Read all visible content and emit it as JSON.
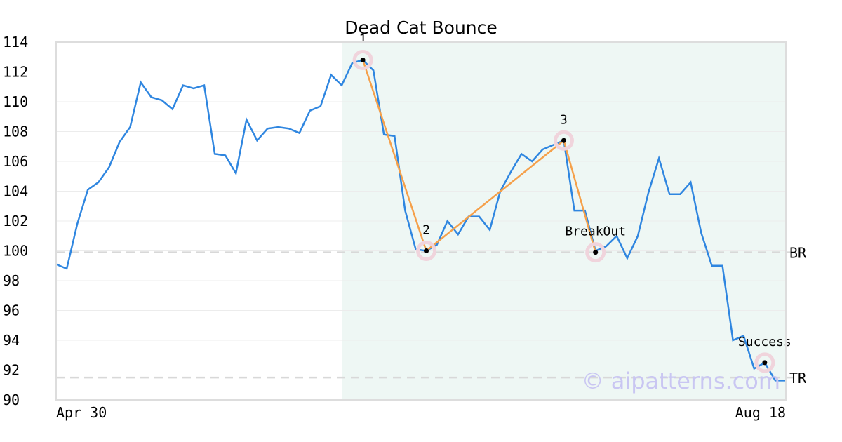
{
  "chart_data": {
    "type": "line",
    "title": "Dead Cat Bounce",
    "xlabel": "",
    "ylabel": "",
    "x_tick_labels": [
      "Apr 30",
      "Aug 18"
    ],
    "y_ticks": [
      90,
      92,
      94,
      96,
      98,
      100,
      102,
      104,
      106,
      108,
      110,
      112,
      114
    ],
    "ylim": [
      90,
      114
    ],
    "grid": true,
    "colors": {
      "price_line": "#2f86e0",
      "pattern_line": "#f5a04a",
      "pattern_zone": "#eef7f4",
      "marker_ring": "#f0d4dc",
      "level_line": "#d8d8d8"
    },
    "series": [
      {
        "values": [
          99.1,
          98.8,
          101.8,
          104.1,
          104.6,
          105.6,
          107.3,
          108.3,
          111.3,
          110.3,
          110.1,
          109.5,
          111.1,
          110.9,
          111.1,
          106.5,
          106.4,
          105.2,
          108.8,
          107.4,
          108.2,
          108.3,
          108.2,
          107.9,
          109.4,
          109.7,
          111.8,
          111.1,
          112.6,
          112.8,
          112.1,
          107.8,
          107.7,
          102.7,
          100.1,
          100.0,
          100.4,
          102.0,
          101.1,
          102.3,
          102.3,
          101.4,
          104.0,
          105.3,
          106.5,
          106.0,
          106.8,
          107.1,
          107.4,
          102.7,
          102.7,
          100.0,
          100.3,
          101.0,
          99.5,
          101.0,
          103.9,
          106.2,
          103.8,
          103.8,
          104.6,
          101.2,
          99.0,
          99.0,
          94.0,
          94.3,
          92.1,
          92.5,
          91.3,
          91.3
        ]
      }
    ],
    "pattern_zone": {
      "start_index": 27,
      "end_index": 69
    },
    "pattern_points": [
      {
        "label": "1",
        "index": 29,
        "value": 112.8
      },
      {
        "label": "2",
        "index": 35,
        "value": 100.0
      },
      {
        "label": "3",
        "index": 48,
        "value": 107.4
      },
      {
        "label": "BreakOut",
        "index": 51,
        "value": 99.9
      },
      {
        "label": "Success",
        "index": 67,
        "value": 92.5
      }
    ],
    "levels": [
      {
        "label": "BR",
        "value": 99.9
      },
      {
        "label": "TR",
        "value": 91.5
      }
    ],
    "watermark": "© aipatterns.com"
  }
}
